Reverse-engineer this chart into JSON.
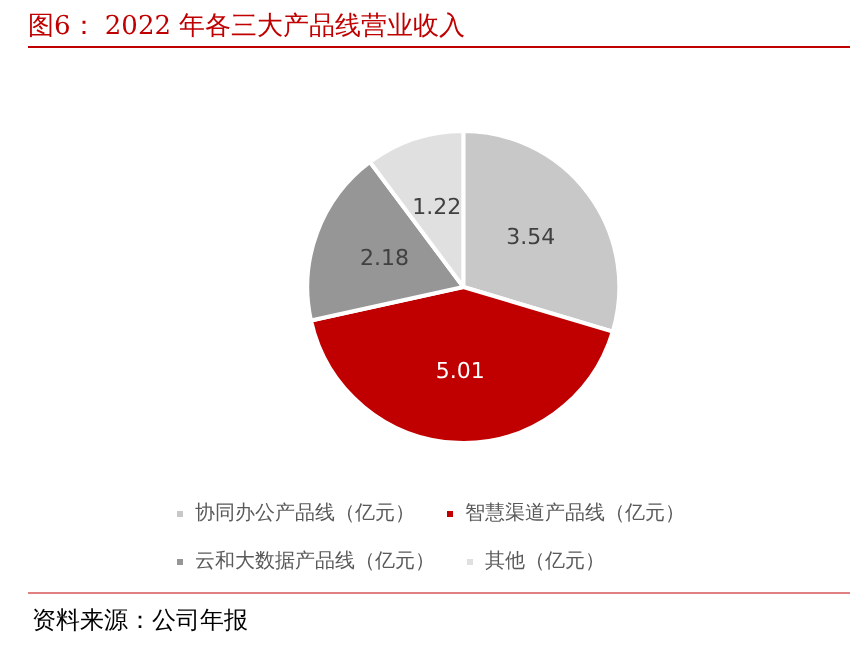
{
  "chart_data": {
    "type": "pie",
    "title": "图6：  2022 年各三大产品线营业收入",
    "categories": [
      "协同办公产品线（亿元）",
      "智慧渠道产品线（亿元）",
      "云和大数据产品线（亿元）",
      "其他（亿元）"
    ],
    "values": [
      3.54,
      5.01,
      2.18,
      1.22
    ],
    "colors": [
      "#c8c8c8",
      "#c00000",
      "#969696",
      "#e0e0e0"
    ],
    "data_labels": true,
    "legend": "bottom",
    "annotations": [
      "资料来源：公司年报"
    ]
  }
}
